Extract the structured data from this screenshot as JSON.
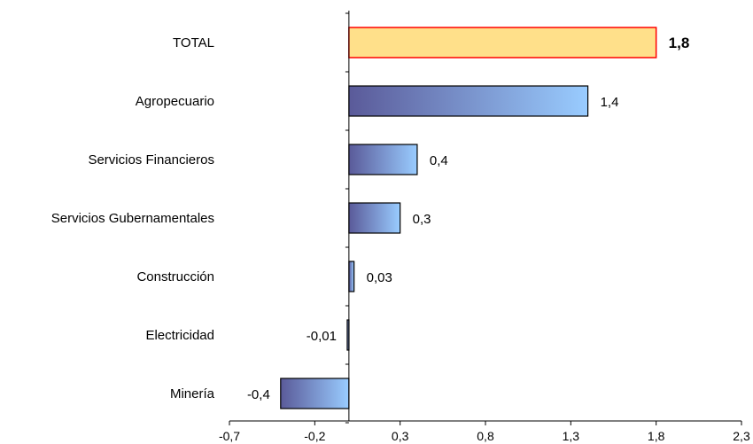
{
  "chart_data": {
    "type": "bar",
    "orientation": "horizontal",
    "categories": [
      "TOTAL",
      "Agropecuario",
      "Servicios Financieros",
      "Servicios Gubernamentales",
      "Construcción",
      "Electricidad",
      "Minería"
    ],
    "values": [
      1.8,
      1.4,
      0.4,
      0.3,
      0.03,
      -0.01,
      -0.4
    ],
    "value_labels": [
      "1,8",
      "1,4",
      "0,4",
      "0,3",
      "0,03",
      "-0,01",
      "-0,4"
    ],
    "xlim": [
      -0.7,
      2.3
    ],
    "xticks": [
      -0.7,
      -0.2,
      0.3,
      0.8,
      1.3,
      1.8,
      2.3
    ],
    "xtick_labels": [
      "-0,7",
      "-0,2",
      "0,3",
      "0,8",
      "1,3",
      "1,8",
      "2,3"
    ],
    "grid": false,
    "legend": "none",
    "colors": {
      "highlight_fill": "#ffe08a",
      "highlight_border": "#ff0000",
      "bar_gradient_dark": "#5a5a99",
      "bar_gradient_light": "#99ccff",
      "bar_border": "#000000"
    }
  }
}
